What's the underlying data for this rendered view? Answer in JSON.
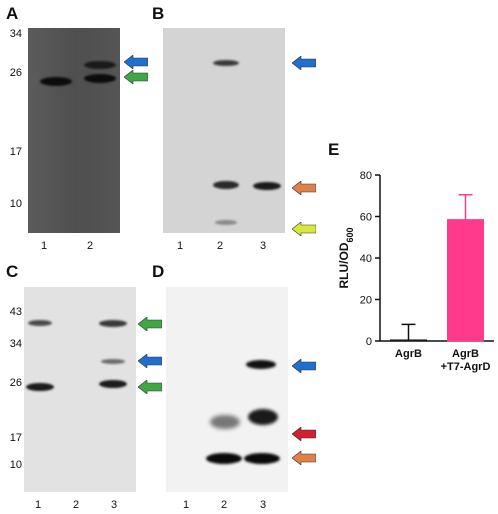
{
  "panels": {
    "A": {
      "letter": "A",
      "mw_markers": [
        "34",
        "26",
        "17",
        "10"
      ],
      "lanes": [
        "1",
        "2"
      ],
      "arrows": [
        "blue-arrow",
        "green-arrow"
      ]
    },
    "B": {
      "letter": "B",
      "lanes": [
        "1",
        "2",
        "3"
      ],
      "arrows": [
        "blue-arrow",
        "orange-arrow",
        "yellow-arrow"
      ]
    },
    "C": {
      "letter": "C",
      "mw_markers": [
        "43",
        "34",
        "26",
        "17",
        "10"
      ],
      "lanes": [
        "1",
        "2",
        "3"
      ],
      "arrows": [
        "green-arrow",
        "blue-arrow",
        "green-arrow"
      ]
    },
    "D": {
      "letter": "D",
      "lanes": [
        "1",
        "2",
        "3"
      ],
      "arrows": [
        "blue-arrow",
        "red-arrow",
        "orange-arrow"
      ]
    },
    "E": {
      "letter": "E"
    }
  },
  "colors": {
    "arrow_blue": "#1f6fd1",
    "arrow_green": "#3fa844",
    "arrow_orange": "#e0804a",
    "arrow_yellow": "#d8e83a",
    "arrow_red": "#d22030",
    "bar_agrd": "#ff3a8c"
  },
  "chart_data": {
    "type": "bar",
    "categories": [
      "AgrB",
      "AgrB\n+T7-AgrD"
    ],
    "values": [
      0.5,
      58.5
    ],
    "error": [
      7.5,
      12
    ],
    "ylabel": "RLU/OD600",
    "ylim": [
      0,
      80
    ],
    "yticks": [
      0,
      20,
      40,
      60,
      80
    ],
    "bar_colors": [
      "#ffffff",
      "#ff3a8c"
    ]
  }
}
